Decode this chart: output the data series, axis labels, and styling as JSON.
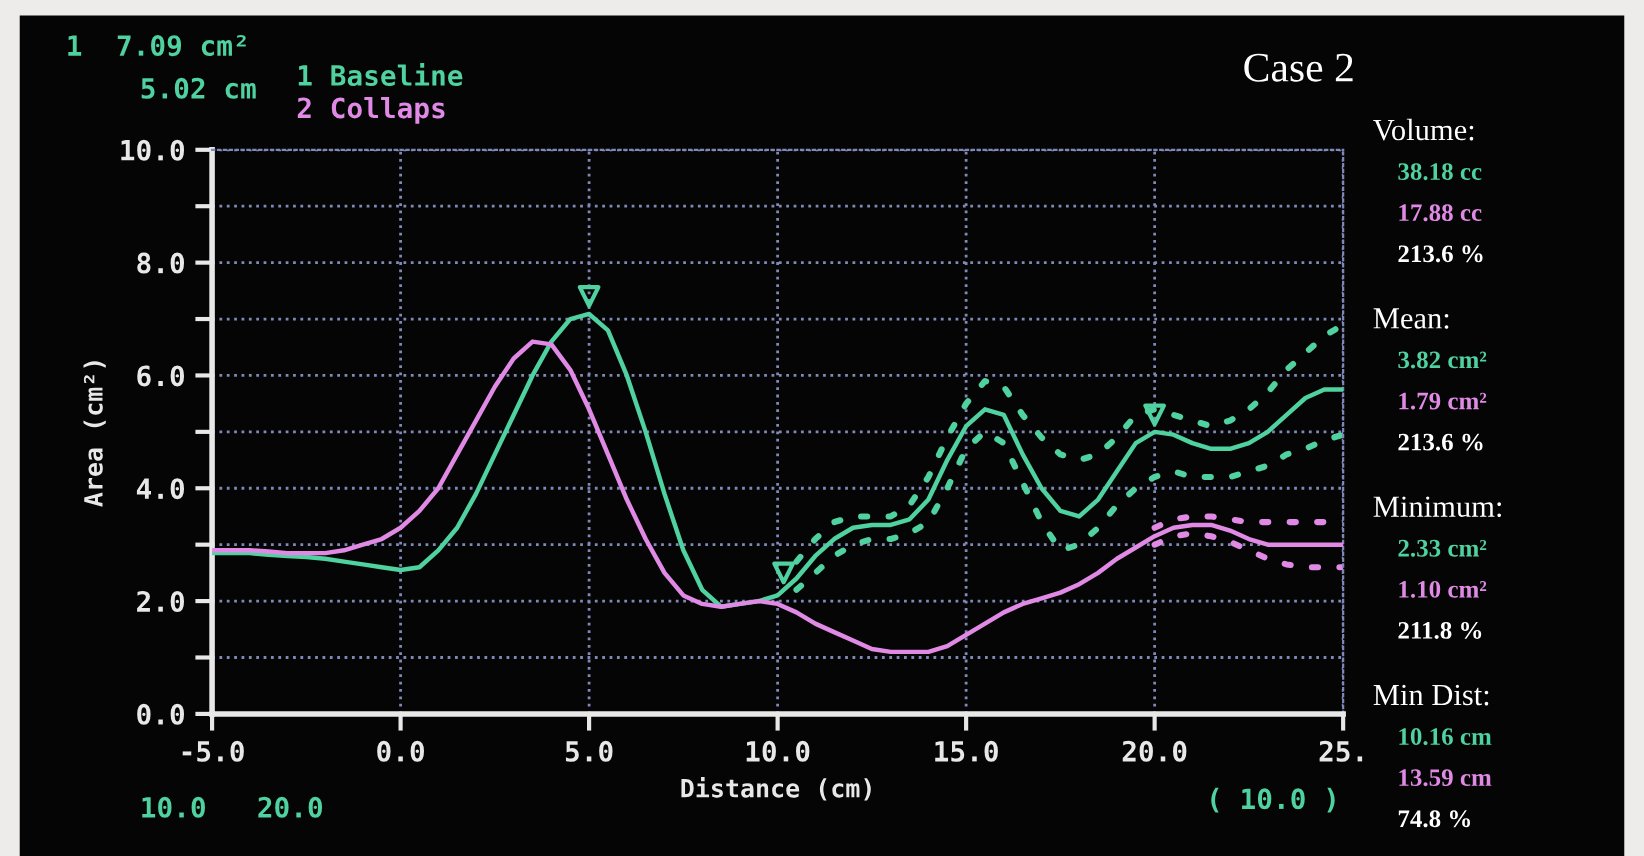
{
  "chart_data": {
    "type": "line",
    "title": "Case 2",
    "xlabel": "Distance (cm)",
    "ylabel": "Area (cm²)",
    "x": [
      -5,
      -4.5,
      -4,
      -3.5,
      -3,
      -2.5,
      -2,
      -1.5,
      -1,
      -0.5,
      0,
      0.5,
      1,
      1.5,
      2,
      2.5,
      3,
      3.5,
      4,
      4.5,
      5,
      5.5,
      6,
      6.5,
      7,
      7.5,
      8,
      8.5,
      9,
      9.5,
      10,
      10.5,
      11,
      11.5,
      12,
      12.5,
      13,
      13.5,
      14,
      14.5,
      15,
      15.5,
      16,
      16.5,
      17,
      17.5,
      18,
      18.5,
      19,
      19.5,
      20,
      20.5,
      21,
      21.5,
      22,
      22.5,
      23,
      23.5,
      24,
      24.5,
      25
    ],
    "series": [
      {
        "name": "1 Baseline",
        "color": "#4fd1a0",
        "values": [
          2.85,
          2.85,
          2.85,
          2.82,
          2.8,
          2.78,
          2.75,
          2.7,
          2.65,
          2.6,
          2.55,
          2.6,
          2.9,
          3.3,
          3.9,
          4.6,
          5.3,
          6.0,
          6.6,
          7.0,
          7.09,
          6.8,
          6.0,
          5.0,
          3.9,
          2.9,
          2.2,
          1.9,
          1.95,
          2.0,
          2.1,
          2.4,
          2.8,
          3.1,
          3.3,
          3.35,
          3.35,
          3.45,
          3.8,
          4.5,
          5.1,
          5.4,
          5.3,
          4.6,
          4.0,
          3.6,
          3.5,
          3.8,
          4.3,
          4.8,
          5.0,
          4.95,
          4.8,
          4.7,
          4.7,
          4.8,
          5.0,
          5.3,
          5.6,
          5.75,
          5.75
        ],
        "line_style": "solid"
      },
      {
        "color": "#4fd1a0",
        "line_style": "dotted",
        "x": [
          10.5,
          11,
          11.5,
          12,
          12.5,
          13,
          13.5,
          14,
          14.5,
          15,
          15.5,
          16,
          16.5,
          17,
          17.5,
          18,
          18.5,
          19,
          19.5,
          20,
          20.5,
          21,
          21.5,
          22,
          22.5,
          23,
          23.5,
          24,
          24.5,
          25
        ],
        "values": [
          2.7,
          3.1,
          3.4,
          3.5,
          3.5,
          3.5,
          3.7,
          4.2,
          4.9,
          5.5,
          5.9,
          5.8,
          5.3,
          4.9,
          4.6,
          4.5,
          4.6,
          4.9,
          5.3,
          5.4,
          5.3,
          5.2,
          5.1,
          5.2,
          5.4,
          5.7,
          6.1,
          6.4,
          6.7,
          6.9
        ]
      },
      {
        "color": "#4fd1a0",
        "line_style": "dotted",
        "x": [
          10.5,
          11,
          11.5,
          12,
          12.5,
          13,
          13.5,
          14,
          14.5,
          15,
          15.5,
          16,
          16.5,
          17,
          17.5,
          18,
          18.5,
          19,
          19.5,
          20,
          20.5,
          21,
          21.5,
          22,
          22.5,
          23,
          23.5,
          24,
          24.5,
          25
        ],
        "values": [
          2.2,
          2.5,
          2.8,
          3.0,
          3.1,
          3.1,
          3.2,
          3.4,
          4.0,
          4.7,
          5.0,
          4.8,
          4.1,
          3.4,
          2.9,
          3.0,
          3.3,
          3.7,
          4.0,
          4.2,
          4.3,
          4.2,
          4.2,
          4.2,
          4.3,
          4.4,
          4.6,
          4.7,
          4.85,
          4.95
        ]
      },
      {
        "name": "2 Collaps",
        "color": "#e08ae6",
        "values": [
          2.9,
          2.9,
          2.9,
          2.88,
          2.85,
          2.85,
          2.85,
          2.9,
          3.0,
          3.1,
          3.3,
          3.6,
          4.0,
          4.6,
          5.2,
          5.8,
          6.3,
          6.6,
          6.55,
          6.1,
          5.4,
          4.6,
          3.8,
          3.1,
          2.5,
          2.1,
          1.95,
          1.9,
          1.95,
          2.0,
          1.95,
          1.8,
          1.6,
          1.45,
          1.3,
          1.15,
          1.1,
          1.1,
          1.1,
          1.2,
          1.4,
          1.6,
          1.8,
          1.95,
          2.05,
          2.15,
          2.3,
          2.5,
          2.75,
          2.95,
          3.15,
          3.3,
          3.35,
          3.35,
          3.25,
          3.1,
          3.0,
          3.0,
          3.0,
          3.0,
          3.0
        ],
        "line_style": "solid"
      },
      {
        "color": "#e08ae6",
        "line_style": "dotted",
        "x": [
          20,
          20.5,
          21,
          21.5,
          22,
          22.5,
          23,
          23.5,
          24,
          24.5,
          25
        ],
        "values": [
          3.3,
          3.45,
          3.5,
          3.5,
          3.45,
          3.4,
          3.4,
          3.4,
          3.4,
          3.4,
          3.4
        ]
      },
      {
        "color": "#e08ae6",
        "line_style": "dotted",
        "x": [
          20,
          20.5,
          21,
          21.5,
          22,
          22.5,
          23,
          23.5,
          24,
          24.5,
          25
        ],
        "values": [
          3.0,
          3.15,
          3.2,
          3.15,
          3.05,
          2.9,
          2.75,
          2.65,
          2.6,
          2.6,
          2.6
        ]
      },
      {
        "type": "scatter",
        "marker": "triangle",
        "color": "#4fd1a0",
        "x": [
          5,
          10.16,
          20
        ],
        "values": [
          7.4,
          2.5,
          5.3
        ]
      }
    ],
    "xlim": [
      -5,
      25
    ],
    "ylim": [
      0,
      10
    ],
    "xticks": [
      {
        "value": -5,
        "label": "-5.0"
      },
      {
        "value": 0,
        "label": "0.0"
      },
      {
        "value": 5,
        "label": "5.0"
      },
      {
        "value": 10,
        "label": "10.0"
      },
      {
        "value": 15,
        "label": "15.0"
      },
      {
        "value": 20,
        "label": "20.0"
      },
      {
        "value": 25,
        "label": "25."
      }
    ],
    "yticks": [
      {
        "value": 0,
        "label": "0.0"
      },
      {
        "value": 1,
        "label": null
      },
      {
        "value": 2,
        "label": "2.0"
      },
      {
        "value": 3,
        "label": null
      },
      {
        "value": 4,
        "label": "4.0"
      },
      {
        "value": 5,
        "label": null
      },
      {
        "value": 6,
        "label": "6.0"
      },
      {
        "value": 7,
        "label": null
      },
      {
        "value": 8,
        "label": "8.0"
      },
      {
        "value": 9,
        "label": null
      },
      {
        "value": 10,
        "label": "10.0"
      }
    ],
    "grid": true,
    "legend": "top left",
    "marker": "none",
    "annotations": [
      "1  7.09 cm²",
      "5.02 cm",
      "Volume:",
      "38.18 cc",
      "17.88 cc",
      "213.6 %",
      "Mean:",
      "3.82 cm²",
      "1.79 cm²",
      "213.6 %",
      "Minimum:",
      "2.33 cm²",
      "1.10 cm²",
      "211.8 %",
      "Min Dist:",
      "10.16 cm",
      "13.59 cm",
      "74.8 %",
      "10.0   20.0",
      "( 10.0 )"
    ]
  }
}
